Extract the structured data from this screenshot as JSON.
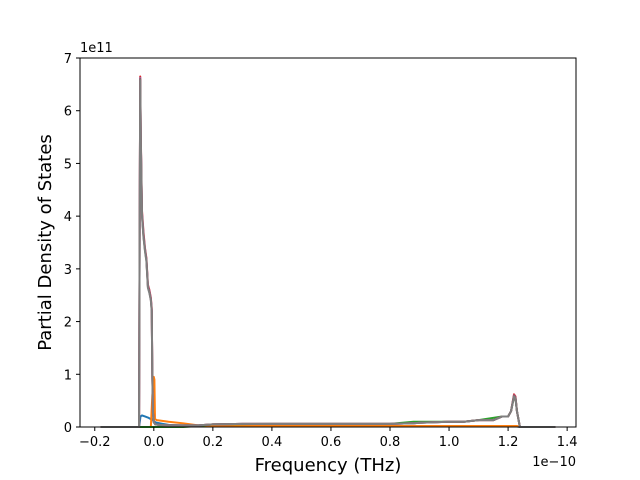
{
  "chart_data": {
    "type": "line",
    "title": "",
    "xlabel": "Frequency (THz)",
    "ylabel": "Partial Density of States",
    "x_offset_label": "1e−10",
    "y_offset_label": "1e11",
    "x_scale": 1e-10,
    "y_scale": 100000000000.0,
    "xlim": [
      -0.25,
      1.43
    ],
    "ylim": [
      0,
      7
    ],
    "x_ticks": [
      -0.2,
      0.0,
      0.2,
      0.4,
      0.6,
      0.8,
      1.0,
      1.2,
      1.4
    ],
    "x_tick_labels": [
      "−0.2",
      "0.0",
      "0.2",
      "0.4",
      "0.6",
      "0.8",
      "1.0",
      "1.2",
      "1.4"
    ],
    "y_ticks": [
      0,
      1,
      2,
      3,
      4,
      5,
      6,
      7
    ],
    "y_tick_labels": [
      "0",
      "1",
      "2",
      "3",
      "4",
      "5",
      "6",
      "7"
    ],
    "grid": false,
    "legend": "none",
    "series": [
      {
        "color": "#1f77b4",
        "x": [
          -0.18,
          -0.05,
          -0.045,
          -0.04,
          -0.03,
          -0.02,
          -0.01,
          -0.005,
          0.0,
          0.001,
          0.01,
          0.03,
          0.05,
          0.15,
          0.2,
          0.4,
          0.6,
          0.8,
          1.0,
          1.1,
          1.2,
          1.22,
          1.225,
          1.23,
          1.24,
          1.36
        ],
        "y": [
          0,
          0,
          0.2,
          0.22,
          0.2,
          0.18,
          0.15,
          0.15,
          0.1,
          0.1,
          0.08,
          0.06,
          0.04,
          0.02,
          0.01,
          0.01,
          0.01,
          0.01,
          0.01,
          0.01,
          0.01,
          0.01,
          0.01,
          0.01,
          0,
          0
        ]
      },
      {
        "color": "#ff7f0e",
        "x": [
          -0.18,
          -0.01,
          -0.005,
          0.0,
          0.002,
          0.004,
          0.01,
          0.05,
          0.1,
          0.15,
          0.2,
          0.4,
          0.6,
          0.8,
          1.0,
          1.1,
          1.2,
          1.22,
          1.225,
          1.23,
          1.24,
          1.36
        ],
        "y": [
          0,
          0,
          0.6,
          0.95,
          0.9,
          0.15,
          0.13,
          0.1,
          0.07,
          0.03,
          0.02,
          0.02,
          0.02,
          0.02,
          0.02,
          0.02,
          0.02,
          0.02,
          0.02,
          0.02,
          0,
          0
        ]
      },
      {
        "color": "#2ca02c",
        "x": [
          -0.18,
          0.1,
          0.15,
          0.2,
          0.4,
          0.6,
          0.8,
          0.88,
          0.9,
          1.0,
          1.05,
          1.1,
          1.18,
          1.2,
          1.21,
          1.22,
          1.225,
          1.23,
          1.24,
          1.36
        ],
        "y": [
          0,
          0,
          0.02,
          0.05,
          0.06,
          0.06,
          0.06,
          0.1,
          0.1,
          0.1,
          0.1,
          0.13,
          0.2,
          0.2,
          0.3,
          0.58,
          0.55,
          0.3,
          0,
          0
        ]
      },
      {
        "color": "#d62728",
        "x": [
          -0.18,
          -0.05,
          -0.048,
          -0.046,
          -0.044,
          -0.04,
          -0.035,
          -0.03,
          -0.025,
          -0.02,
          -0.015,
          -0.01,
          -0.007,
          -0.005,
          -0.003,
          0.0,
          0.005,
          0.02,
          0.05,
          0.1,
          0.15,
          0.2,
          0.3,
          0.4,
          0.5,
          0.6,
          0.7,
          0.8,
          0.88,
          0.9,
          1.0,
          1.05,
          1.1,
          1.15,
          1.18,
          1.2,
          1.21,
          1.22,
          1.225,
          1.23,
          1.24,
          1.36
        ],
        "y": [
          0,
          0,
          3.7,
          6.65,
          5.5,
          4.1,
          3.7,
          3.4,
          3.2,
          2.7,
          2.6,
          2.45,
          2.25,
          1.0,
          0.3,
          0.1,
          0.05,
          0.04,
          0.03,
          0.03,
          0.03,
          0.05,
          0.06,
          0.06,
          0.06,
          0.06,
          0.06,
          0.06,
          0.07,
          0.08,
          0.1,
          0.1,
          0.13,
          0.13,
          0.2,
          0.2,
          0.3,
          0.62,
          0.58,
          0.3,
          0,
          0
        ]
      },
      {
        "color": "#9467bd",
        "x": [
          -0.18,
          -0.05,
          -0.048,
          -0.046,
          -0.044,
          -0.04,
          -0.035,
          -0.03,
          -0.025,
          -0.02,
          -0.015,
          -0.01,
          -0.007,
          -0.005,
          -0.003,
          0.0,
          0.005,
          0.02,
          0.05,
          0.1,
          0.15,
          0.2,
          0.3,
          0.4,
          0.5,
          0.6,
          0.7,
          0.8,
          0.88,
          0.9,
          1.0,
          1.05,
          1.1,
          1.15,
          1.18,
          1.2,
          1.21,
          1.22,
          1.225,
          1.23,
          1.24,
          1.36
        ],
        "y": [
          0,
          0,
          3.68,
          6.62,
          5.45,
          4.05,
          3.65,
          3.38,
          3.18,
          2.68,
          2.58,
          2.43,
          2.22,
          0.98,
          0.28,
          0.09,
          0.05,
          0.04,
          0.03,
          0.03,
          0.03,
          0.05,
          0.06,
          0.06,
          0.06,
          0.06,
          0.06,
          0.06,
          0.07,
          0.08,
          0.1,
          0.1,
          0.13,
          0.13,
          0.2,
          0.2,
          0.3,
          0.6,
          0.56,
          0.3,
          0,
          0
        ]
      },
      {
        "color": "#8c564b",
        "x": [
          -0.18,
          -0.05,
          -0.048,
          -0.046,
          -0.044,
          -0.04,
          -0.035,
          -0.03,
          -0.025,
          -0.02,
          -0.015,
          -0.01,
          -0.007,
          -0.005,
          -0.003,
          0.0,
          0.005,
          0.02,
          0.05,
          0.1,
          0.15,
          0.2,
          0.3,
          0.4,
          0.5,
          0.6,
          0.7,
          0.8,
          0.88,
          0.9,
          1.0,
          1.05,
          1.1,
          1.15,
          1.18,
          1.2,
          1.21,
          1.22,
          1.225,
          1.23,
          1.24,
          1.36
        ],
        "y": [
          0,
          0,
          3.66,
          6.6,
          5.42,
          4.02,
          3.62,
          3.36,
          3.16,
          2.66,
          2.56,
          2.41,
          2.2,
          0.96,
          0.27,
          0.09,
          0.05,
          0.04,
          0.03,
          0.03,
          0.03,
          0.05,
          0.06,
          0.06,
          0.06,
          0.06,
          0.06,
          0.06,
          0.07,
          0.08,
          0.1,
          0.1,
          0.13,
          0.13,
          0.2,
          0.2,
          0.3,
          0.59,
          0.55,
          0.3,
          0,
          0
        ]
      },
      {
        "color": "#7f7f7f",
        "x": [
          -0.18,
          -0.05,
          -0.048,
          -0.046,
          -0.044,
          -0.04,
          -0.035,
          -0.03,
          -0.025,
          -0.02,
          -0.015,
          -0.01,
          -0.007,
          -0.005,
          -0.003,
          0.0,
          0.005,
          0.02,
          0.05,
          0.1,
          0.15,
          0.2,
          0.3,
          0.4,
          0.5,
          0.6,
          0.7,
          0.8,
          0.88,
          0.9,
          1.0,
          1.05,
          1.1,
          1.15,
          1.18,
          1.2,
          1.21,
          1.22,
          1.225,
          1.23,
          1.24,
          1.36
        ],
        "y": [
          0,
          0,
          3.64,
          6.58,
          5.4,
          4.0,
          3.6,
          3.34,
          3.14,
          2.64,
          2.54,
          2.4,
          2.19,
          0.95,
          0.27,
          0.09,
          0.05,
          0.04,
          0.03,
          0.03,
          0.03,
          0.05,
          0.06,
          0.06,
          0.06,
          0.06,
          0.06,
          0.06,
          0.07,
          0.08,
          0.1,
          0.1,
          0.13,
          0.13,
          0.2,
          0.2,
          0.3,
          0.58,
          0.54,
          0.3,
          0,
          0
        ]
      }
    ]
  }
}
